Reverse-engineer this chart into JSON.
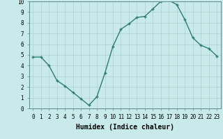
{
  "x": [
    0,
    1,
    2,
    3,
    4,
    5,
    6,
    7,
    8,
    9,
    10,
    11,
    12,
    13,
    14,
    15,
    16,
    17,
    18,
    19,
    20,
    21,
    22,
    23
  ],
  "y": [
    4.8,
    4.8,
    4.0,
    2.6,
    2.1,
    1.5,
    0.9,
    0.3,
    1.1,
    3.3,
    5.8,
    7.4,
    7.9,
    8.5,
    8.6,
    9.3,
    10.0,
    10.1,
    9.7,
    8.3,
    6.6,
    5.9,
    5.6,
    4.9
  ],
  "line_color": "#2e7d6e",
  "marker": "+",
  "marker_size": 3,
  "marker_lw": 1.0,
  "line_width": 1.0,
  "xlabel": "Humidex (Indice chaleur)",
  "xlim": [
    -0.5,
    23.5
  ],
  "ylim": [
    0,
    10
  ],
  "bg_color": "#c8eaea",
  "grid_color": "#b0d0d0",
  "xlabel_fontsize": 7,
  "tick_fontsize": 5.5
}
